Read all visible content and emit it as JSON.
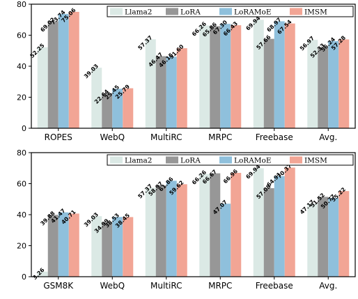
{
  "colors": {
    "Llama2": "#dbe9e5",
    "LoRA": "#979797",
    "LoRAMoE": "#8fc0dc",
    "IMSM": "#f2a595"
  },
  "chart_data": [
    {
      "type": "bar",
      "title": "",
      "xlabel": "",
      "ylabel": "",
      "ylim": [
        0,
        80
      ],
      "yticks": [
        0,
        20,
        40,
        60,
        80
      ],
      "legend_position": "top-right",
      "categories": [
        "ROPES",
        "WebQ",
        "MultiRC",
        "MRPC",
        "Freebase",
        "Avg."
      ],
      "series": [
        {
          "name": "Llama2",
          "values": [
            52.25,
            39.03,
            57.37,
            66.26,
            69.94,
            56.97
          ],
          "labels": [
            "52.25",
            "39.03",
            "57.37",
            "66.26",
            "69.94",
            "56.97"
          ]
        },
        {
          "name": "LoRA",
          "values": [
            69.02,
            22.64,
            46.47,
            65.86,
            57.66,
            52.33
          ],
          "labels": [
            "69.02",
            "22.64",
            "46.47",
            "65.86",
            "57.66",
            "52.33"
          ]
        },
        {
          "name": "LoRAMoE",
          "values": [
            73.74,
            25.45,
            46.15,
            67.3,
            68.97,
            56.24
          ],
          "labels": [
            "73.74",
            "25.45",
            "46.15",
            "67.30",
            "68.97",
            "56.24"
          ]
        },
        {
          "name": "IMSM",
          "values": [
            75.06,
            25.79,
            51.6,
            66.43,
            67.54,
            57.28
          ],
          "labels": [
            "75.06",
            "25.79",
            "51.60",
            "66.43",
            "67.54",
            "57.28"
          ]
        }
      ]
    },
    {
      "type": "bar",
      "title": "",
      "xlabel": "",
      "ylabel": "",
      "ylim": [
        0,
        80
      ],
      "yticks": [
        0,
        20,
        40,
        60,
        80
      ],
      "legend_position": "top-right",
      "categories": [
        "GSM8K",
        "WebQ",
        "MultiRC",
        "MRPC",
        "Freebase",
        "Avg."
      ],
      "series": [
        {
          "name": "Llama2",
          "values": [
            3.26,
            39.03,
            57.37,
            66.26,
            69.94,
            47.17
          ],
          "labels": [
            "3.26",
            "39.03",
            "57.37",
            "66.26",
            "69.94",
            "47.17"
          ]
        },
        {
          "name": "LoRA",
          "values": [
            39.88,
            34.99,
            58.97,
            66.67,
            57.08,
            51.52
          ],
          "labels": [
            "39.88",
            "34.99",
            "58.97",
            "66.67",
            "57.08",
            "51.52"
          ]
        },
        {
          "name": "LoRAMoE",
          "values": [
            41.47,
            38.53,
            61.86,
            47.07,
            64.91,
            50.77
          ],
          "labels": [
            "41.47",
            "38.53",
            "61.86",
            "47.07",
            "64.91",
            "50.77"
          ]
        },
        {
          "name": "IMSM",
          "values": [
            40.71,
            38.45,
            59.62,
            66.96,
            70.37,
            55.22
          ],
          "labels": [
            "40.71",
            "38.45",
            "59.62",
            "66.96",
            "70.37",
            "55.22"
          ]
        }
      ]
    }
  ]
}
